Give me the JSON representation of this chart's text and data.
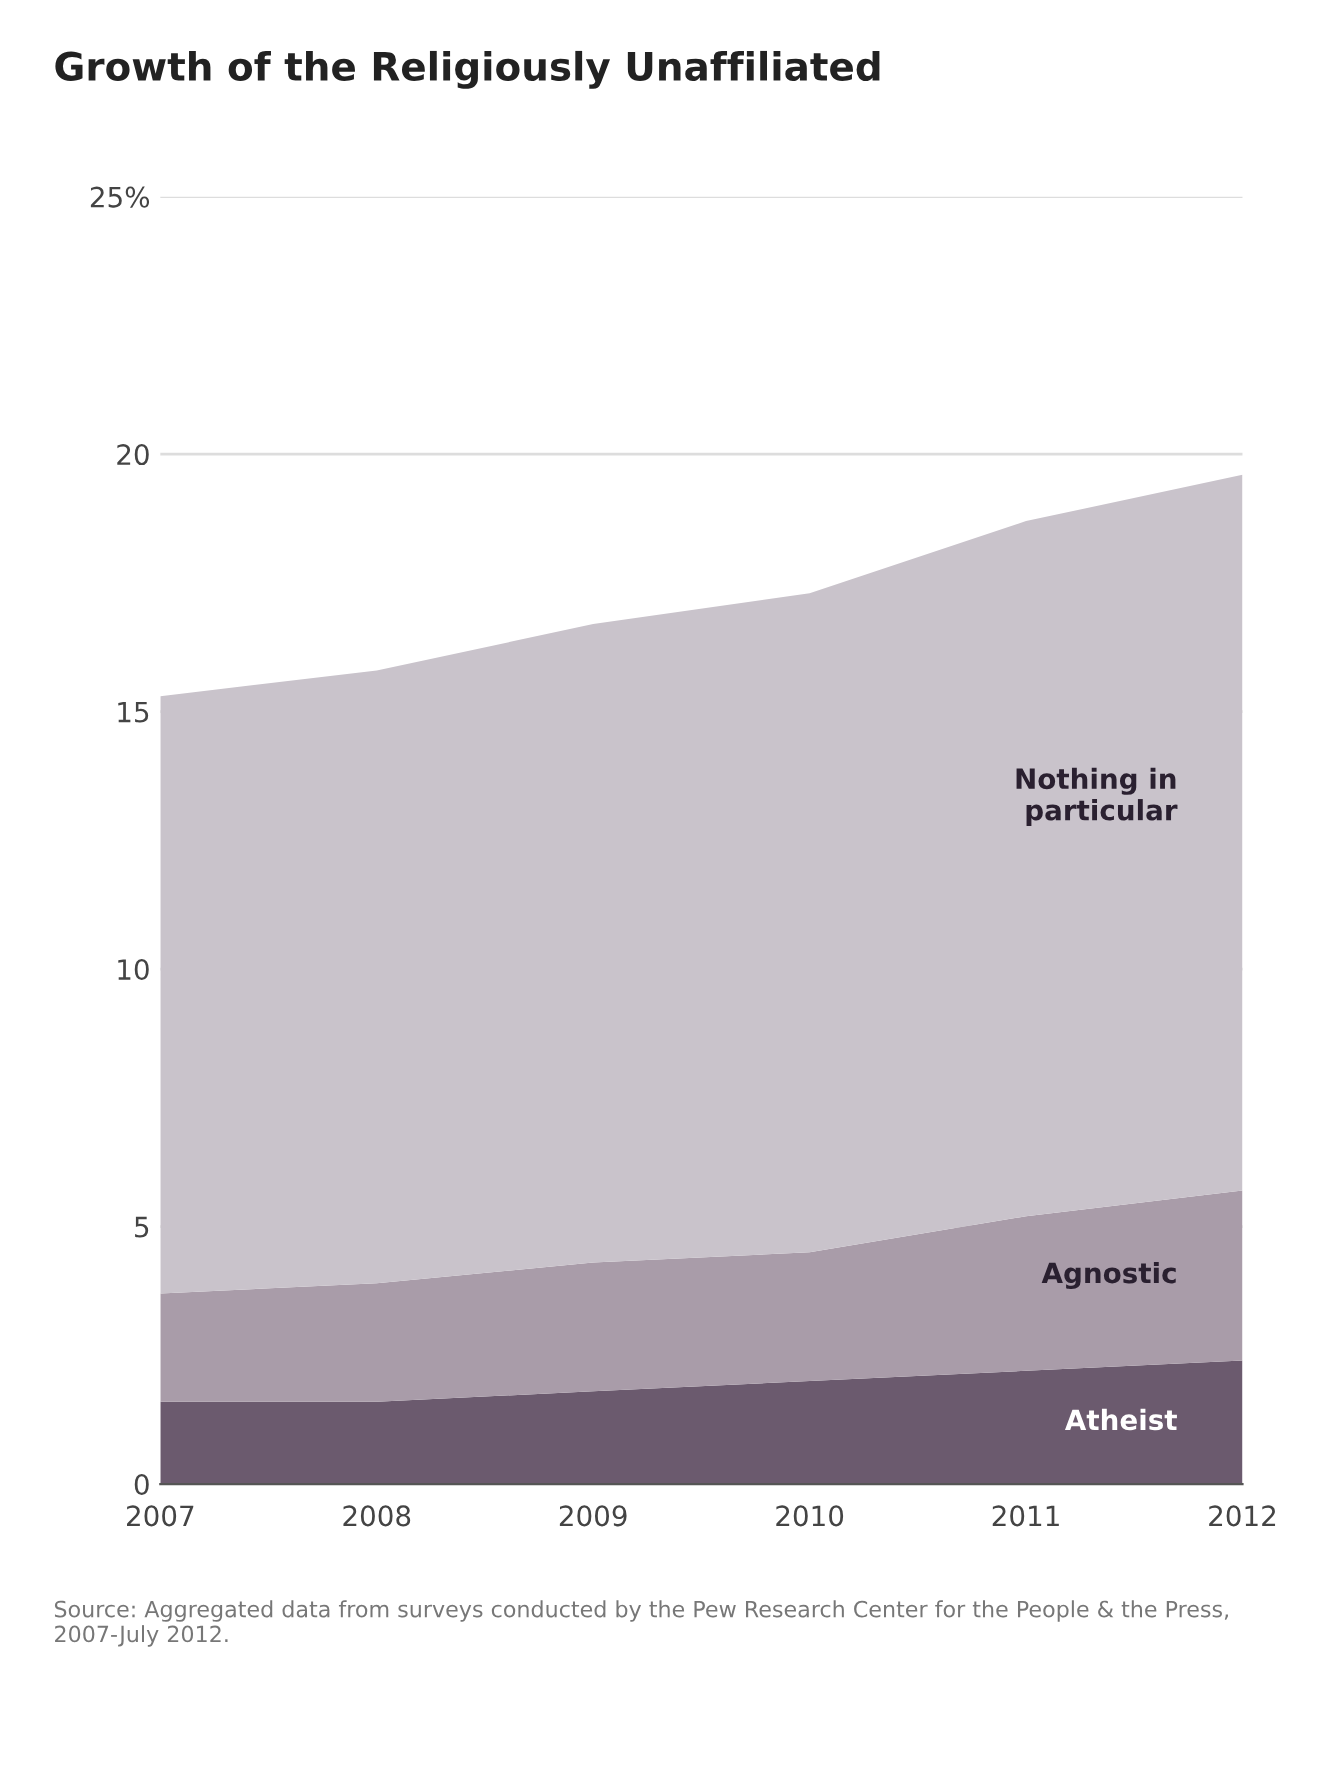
{
  "chart_data": {
    "type": "area",
    "title": "Growth of the Religiously Unaffiliated",
    "stacked": true,
    "x": [
      2007,
      2008,
      2009,
      2010,
      2011,
      2012
    ],
    "series": [
      {
        "name": "Atheist",
        "color": "#6b5a6e",
        "values": [
          1.6,
          1.6,
          1.8,
          2.0,
          2.2,
          2.4
        ]
      },
      {
        "name": "Agnostic",
        "color": "#a99ca9",
        "values": [
          2.1,
          2.3,
          2.5,
          2.5,
          3.0,
          3.3
        ]
      },
      {
        "name": "Nothing in\nparticular",
        "color": "#c9c3cb",
        "values": [
          11.6,
          11.9,
          12.4,
          12.8,
          13.5,
          13.9
        ]
      }
    ],
    "xlim": [
      2007,
      2012
    ],
    "xticks": [
      2007,
      2008,
      2009,
      2010,
      2011,
      2012
    ],
    "ylim": [
      0,
      25
    ],
    "yticks": [
      0,
      5,
      10,
      15,
      20,
      {
        "value": 25,
        "label": "25%"
      }
    ],
    "grid": "y",
    "annotations": [
      "Source: Aggregated data from surveys conducted by the Pew Research Center for the People & the Press, 2007-July 2012."
    ]
  }
}
